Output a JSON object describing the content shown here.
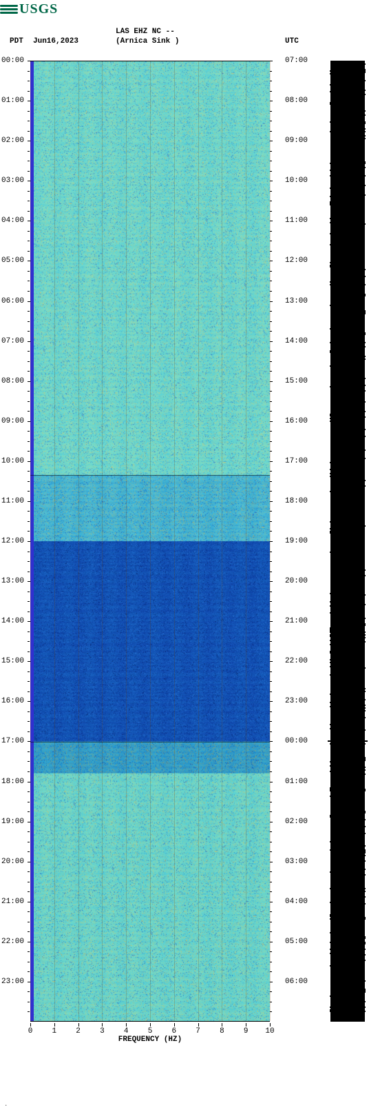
{
  "logo": {
    "text": "USGS",
    "color": "#006747"
  },
  "header": {
    "tz_left": "PDT",
    "date": "Jun16,2023",
    "station_line1": "LAS EHZ NC --",
    "station_line2": "(Arnica Sink )",
    "tz_right": "UTC"
  },
  "spectrogram": {
    "type": "spectrogram",
    "x_label": "FREQUENCY (HZ)",
    "xlim": [
      0,
      10
    ],
    "x_ticks": [
      0,
      1,
      2,
      3,
      4,
      5,
      6,
      7,
      8,
      9,
      10
    ],
    "time_rows": 24,
    "left_ticks": [
      "00:00",
      "01:00",
      "02:00",
      "03:00",
      "04:00",
      "05:00",
      "06:00",
      "07:00",
      "08:00",
      "09:00",
      "10:00",
      "11:00",
      "12:00",
      "13:00",
      "14:00",
      "15:00",
      "16:00",
      "17:00",
      "18:00",
      "19:00",
      "20:00",
      "21:00",
      "22:00",
      "23:00"
    ],
    "right_ticks": [
      "07:00",
      "08:00",
      "09:00",
      "10:00",
      "11:00",
      "12:00",
      "13:00",
      "14:00",
      "15:00",
      "16:00",
      "17:00",
      "18:00",
      "19:00",
      "20:00",
      "21:00",
      "22:00",
      "23:00",
      "00:00",
      "01:00",
      "02:00",
      "03:00",
      "04:00",
      "05:00",
      "06:00"
    ],
    "section_breaks": [
      10.333,
      17.0
    ],
    "minor_per_hour": 4,
    "left_band_color": "#3030d0",
    "grid_color": "rgba(120,60,0,0.22)",
    "bands": [
      {
        "from": 0.0,
        "to": 10.33,
        "c1": "#84e6c8",
        "c2": "#4fd2dd",
        "noise_a": "#f0c050",
        "noise_b": "#2050c0"
      },
      {
        "from": 10.33,
        "to": 12.0,
        "c1": "#55cde0",
        "c2": "#2aa8d8",
        "noise_a": "#e0b040",
        "noise_b": "#1038b0"
      },
      {
        "from": 12.0,
        "to": 17.0,
        "c1": "#1565c0",
        "c2": "#0d3fa8",
        "noise_a": "#3080e0",
        "noise_b": "#041a60"
      },
      {
        "from": 17.0,
        "to": 17.8,
        "c1": "#38b8d8",
        "c2": "#1e8fcf",
        "noise_a": "#d0a030",
        "noise_b": "#0830a0"
      },
      {
        "from": 17.8,
        "to": 24.0,
        "c1": "#80e4c6",
        "c2": "#4cd0dc",
        "noise_a": "#e8b848",
        "noise_b": "#1848b8"
      }
    ]
  },
  "waveform": {
    "color": "#000000",
    "base_width": 50,
    "notch_at_hour": 17.0
  },
  "footer_mark": "."
}
